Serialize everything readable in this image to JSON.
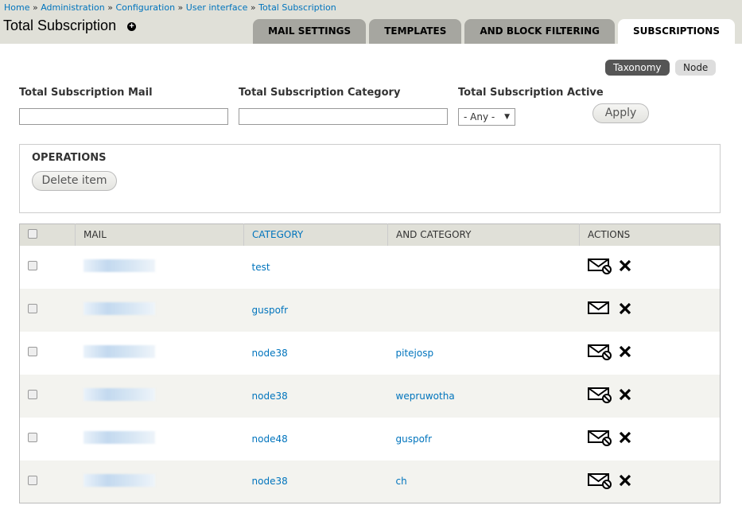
{
  "breadcrumb": [
    "Home",
    "Administration",
    "Configuration",
    "User interface",
    "Total Subscription"
  ],
  "page_title": "Total Subscription",
  "tabs": [
    {
      "label": "MAIL SETTINGS"
    },
    {
      "label": "TEMPLATES"
    },
    {
      "label": "AND BLOCK FILTERING"
    },
    {
      "label": "SUBSCRIPTIONS",
      "active": true
    }
  ],
  "type_switch": {
    "taxonomy": "Taxonomy",
    "node": "Node"
  },
  "filters": {
    "mail_label": "Total Subscription Mail",
    "mail_value": "",
    "category_label": "Total Subscription Category",
    "category_value": "",
    "active_label": "Total Subscription Active",
    "active_value": "- Any -",
    "apply": "Apply"
  },
  "operations": {
    "title": "OPERATIONS",
    "delete": "Delete item"
  },
  "table": {
    "headers": [
      "MAIL",
      "CATEGORY",
      "AND CATEGORY",
      "ACTIONS"
    ],
    "rows": [
      {
        "category": "test",
        "and_category": "",
        "mail_icon": "mail-blocked-icon"
      },
      {
        "category": "guspofr",
        "and_category": "",
        "mail_icon": "mail-icon"
      },
      {
        "category": "node38",
        "and_category": "pitejosp",
        "mail_icon": "mail-blocked-icon"
      },
      {
        "category": "node38",
        "and_category": "wepruwotha",
        "mail_icon": "mail-blocked-icon"
      },
      {
        "category": "node48",
        "and_category": "guspofr",
        "mail_icon": "mail-blocked-icon"
      },
      {
        "category": "node38",
        "and_category": "ch",
        "mail_icon": "mail-blocked-icon"
      }
    ]
  }
}
